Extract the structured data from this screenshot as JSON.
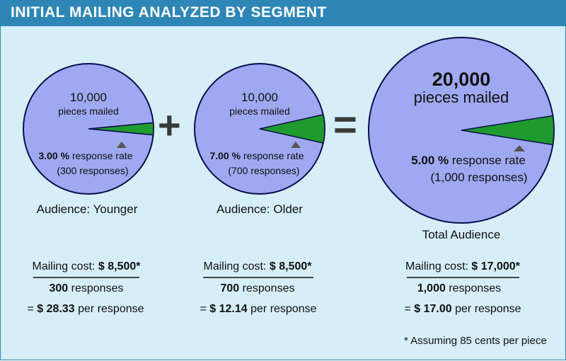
{
  "header": {
    "title": "INITIAL MAILING ANALYZED BY SEGMENT"
  },
  "colors": {
    "pie_main": "#9fa9f2",
    "pie_slice": "#1f9a2f",
    "pie_outline": "#0d0d4d",
    "header_bg": "#2e86b7",
    "background": "#d6eef8"
  },
  "operators": {
    "plus": "+",
    "equals": "="
  },
  "segments": [
    {
      "count": "10,000",
      "count_label": "pieces mailed",
      "rate": "3.00 %",
      "rate_label": "response rate",
      "responses": "(300 responses)",
      "response_fraction": 0.03,
      "audience": "Audience: Younger",
      "cost_label": "Mailing cost:",
      "cost_value": "$ 8,500*",
      "responses_num": "300",
      "responses_word": "responses",
      "per_prefix": "= ",
      "per_value": "$ 28.33",
      "per_suffix": "per response"
    },
    {
      "count": "10,000",
      "count_label": "pieces mailed",
      "rate": "7.00 %",
      "rate_label": "response rate",
      "responses": "(700 responses)",
      "response_fraction": 0.07,
      "audience": "Audience: Older",
      "cost_label": "Mailing cost:",
      "cost_value": "$ 8,500*",
      "responses_num": "700",
      "responses_word": "responses",
      "per_prefix": "= ",
      "per_value": "$ 12.14",
      "per_suffix": "per response"
    },
    {
      "count": "20,000",
      "count_label": "pieces mailed",
      "rate": "5.00 %",
      "rate_label": "response rate",
      "responses": "(1,000 responses)",
      "response_fraction": 0.05,
      "audience": "Total Audience",
      "cost_label": "Mailing cost:",
      "cost_value": "$ 17,000*",
      "responses_num": "1,000",
      "responses_word": "responses",
      "per_prefix": "= ",
      "per_value": "$ 17.00",
      "per_suffix": "per response"
    }
  ],
  "footnote": "* Assuming 85 cents per piece"
}
